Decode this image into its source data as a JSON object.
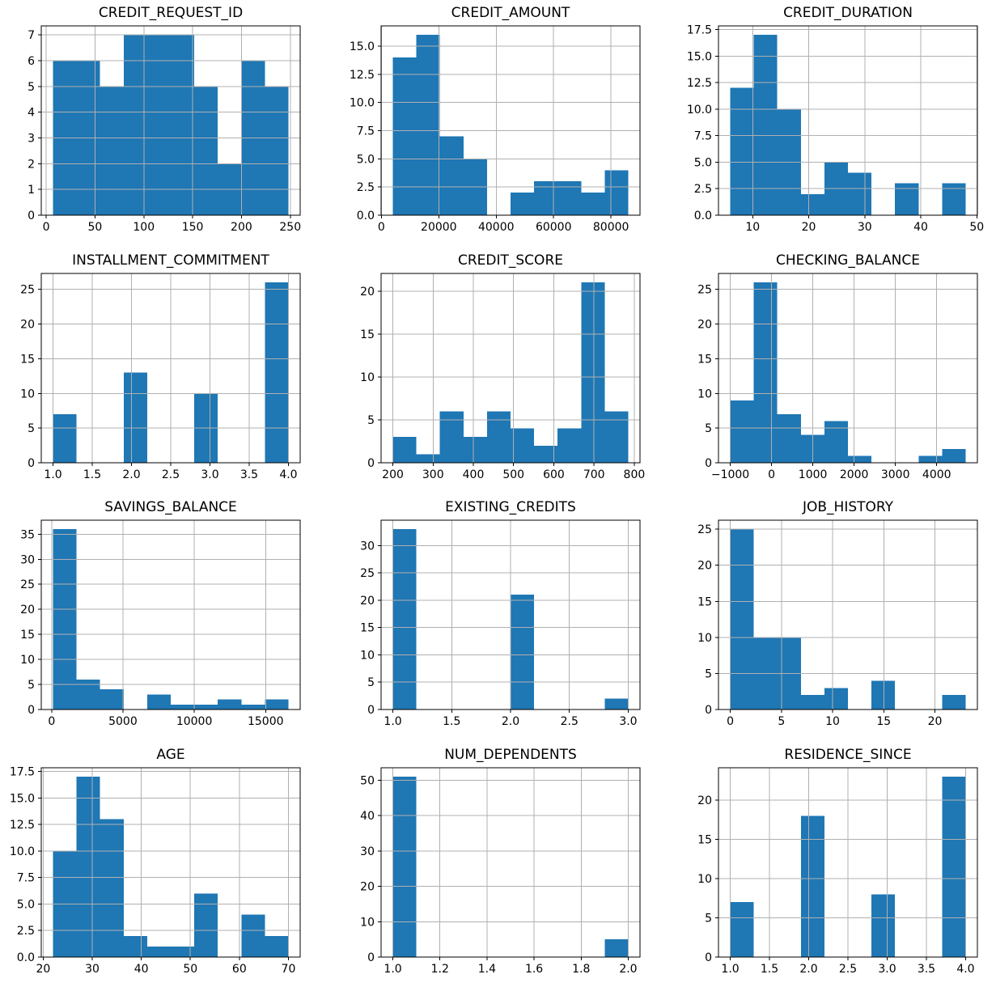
{
  "figure": {
    "background": "#ffffff",
    "bar_color": "#1f77b4",
    "grid_color": "#b0b0b0",
    "frame_color": "#000000",
    "tick_color": "#000000",
    "nrows": 4,
    "ncols": 3,
    "total_count_per_plot": 56
  },
  "chart_data": [
    {
      "type": "bar",
      "title": "CREDIT_REQUEST_ID",
      "bin_start": 7,
      "bin_width": 24.1,
      "values": [
        6,
        6,
        5,
        7,
        7,
        7,
        5,
        2,
        6,
        5
      ],
      "xlim": [
        -5.05,
        260.15
      ],
      "ylim": [
        0,
        7.35
      ],
      "xticks": [
        0,
        50,
        100,
        150,
        200,
        250
      ],
      "xtick_labels": [
        "0",
        "50",
        "100",
        "150",
        "200",
        "250"
      ],
      "yticks": [
        0,
        1,
        2,
        3,
        4,
        5,
        6,
        7
      ],
      "ytick_labels": [
        "0",
        "1",
        "2",
        "3",
        "4",
        "5",
        "6",
        "7"
      ],
      "grid": true,
      "xlabel": "",
      "ylabel": ""
    },
    {
      "type": "bar",
      "title": "CREDIT_AMOUNT",
      "bin_start": 4000,
      "bin_width": 8200,
      "values": [
        14,
        16,
        7,
        5,
        0,
        2,
        3,
        3,
        2,
        4
      ],
      "xlim": [
        -100,
        90100
      ],
      "ylim": [
        0,
        16.8
      ],
      "xticks": [
        0,
        20000,
        40000,
        60000,
        80000
      ],
      "xtick_labels": [
        "0",
        "20000",
        "40000",
        "60000",
        "80000"
      ],
      "yticks": [
        0,
        2.5,
        5,
        7.5,
        10,
        12.5,
        15
      ],
      "ytick_labels": [
        "0.0",
        "2.5",
        "5.0",
        "7.5",
        "10.0",
        "12.5",
        "15.0"
      ],
      "grid": true,
      "xlabel": "",
      "ylabel": ""
    },
    {
      "type": "bar",
      "title": "CREDIT_DURATION",
      "bin_start": 6,
      "bin_width": 4.2,
      "values": [
        12,
        17,
        10,
        2,
        5,
        4,
        0,
        3,
        0,
        3
      ],
      "xlim": [
        3.9,
        50.1
      ],
      "ylim": [
        0,
        17.85
      ],
      "xticks": [
        10,
        20,
        30,
        40,
        50
      ],
      "xtick_labels": [
        "10",
        "20",
        "30",
        "40",
        "50"
      ],
      "yticks": [
        0,
        2.5,
        5,
        7.5,
        10,
        12.5,
        15,
        17.5
      ],
      "ytick_labels": [
        "0.0",
        "2.5",
        "5.0",
        "7.5",
        "10.0",
        "12.5",
        "15.0",
        "17.5"
      ],
      "grid": true,
      "xlabel": "",
      "ylabel": ""
    },
    {
      "type": "bar",
      "title": "INSTALLMENT_COMMITMENT",
      "bin_start": 1,
      "bin_width": 0.3,
      "values": [
        7,
        0,
        0,
        13,
        0,
        0,
        10,
        0,
        0,
        26
      ],
      "xlim": [
        0.85,
        4.15
      ],
      "ylim": [
        0,
        27.3
      ],
      "xticks": [
        1,
        1.5,
        2,
        2.5,
        3,
        3.5,
        4
      ],
      "xtick_labels": [
        "1.0",
        "1.5",
        "2.0",
        "2.5",
        "3.0",
        "3.5",
        "4.0"
      ],
      "yticks": [
        0,
        5,
        10,
        15,
        20,
        25
      ],
      "ytick_labels": [
        "0",
        "5",
        "10",
        "15",
        "20",
        "25"
      ],
      "grid": true,
      "xlabel": "",
      "ylabel": ""
    },
    {
      "type": "bar",
      "title": "CREDIT_SCORE",
      "bin_start": 200,
      "bin_width": 58.5,
      "values": [
        3,
        1,
        6,
        3,
        6,
        4,
        2,
        4,
        21,
        6
      ],
      "xlim": [
        170.75,
        814.25
      ],
      "ylim": [
        0,
        22.05
      ],
      "xticks": [
        200,
        300,
        400,
        500,
        600,
        700,
        800
      ],
      "xtick_labels": [
        "200",
        "300",
        "400",
        "500",
        "600",
        "700",
        "800"
      ],
      "yticks": [
        0,
        5,
        10,
        15,
        20
      ],
      "ytick_labels": [
        "0",
        "5",
        "10",
        "15",
        "20"
      ],
      "grid": true,
      "xlabel": "",
      "ylabel": ""
    },
    {
      "type": "bar",
      "title": "CHECKING_BALANCE",
      "bin_start": -1000,
      "bin_width": 570,
      "values": [
        9,
        26,
        7,
        4,
        6,
        1,
        0,
        0,
        1,
        2
      ],
      "xlim": [
        -1285,
        4985
      ],
      "ylim": [
        0,
        27.3
      ],
      "xticks": [
        -1000,
        0,
        1000,
        2000,
        3000,
        4000
      ],
      "xtick_labels": [
        "−1000",
        "0",
        "1000",
        "2000",
        "3000",
        "4000"
      ],
      "yticks": [
        0,
        5,
        10,
        15,
        20,
        25
      ],
      "ytick_labels": [
        "0",
        "5",
        "10",
        "15",
        "20",
        "25"
      ],
      "grid": true,
      "xlabel": "",
      "ylabel": ""
    },
    {
      "type": "bar",
      "title": "SAVINGS_BALANCE",
      "bin_start": 100,
      "bin_width": 1650,
      "values": [
        36,
        6,
        4,
        0,
        3,
        1,
        1,
        2,
        1,
        2
      ],
      "xlim": [
        -725,
        17425
      ],
      "ylim": [
        0,
        37.8
      ],
      "xticks": [
        0,
        5000,
        10000,
        15000
      ],
      "xtick_labels": [
        "0",
        "5000",
        "10000",
        "15000"
      ],
      "yticks": [
        0,
        5,
        10,
        15,
        20,
        25,
        30,
        35
      ],
      "ytick_labels": [
        "0",
        "5",
        "10",
        "15",
        "20",
        "25",
        "30",
        "35"
      ],
      "grid": true,
      "xlabel": "",
      "ylabel": ""
    },
    {
      "type": "bar",
      "title": "EXISTING_CREDITS",
      "bin_start": 1,
      "bin_width": 0.2,
      "values": [
        33,
        0,
        0,
        0,
        0,
        21,
        0,
        0,
        0,
        2
      ],
      "xlim": [
        0.9,
        3.1
      ],
      "ylim": [
        0,
        34.65
      ],
      "xticks": [
        1,
        1.5,
        2,
        2.5,
        3
      ],
      "xtick_labels": [
        "1.0",
        "1.5",
        "2.0",
        "2.5",
        "3.0"
      ],
      "yticks": [
        0,
        5,
        10,
        15,
        20,
        25,
        30
      ],
      "ytick_labels": [
        "0",
        "5",
        "10",
        "15",
        "20",
        "25",
        "30"
      ],
      "grid": true,
      "xlabel": "",
      "ylabel": ""
    },
    {
      "type": "bar",
      "title": "JOB_HISTORY",
      "bin_start": 0,
      "bin_width": 2.3,
      "values": [
        25,
        10,
        10,
        2,
        3,
        0,
        4,
        0,
        0,
        2
      ],
      "xlim": [
        -1.15,
        24.15
      ],
      "ylim": [
        0,
        26.25
      ],
      "xticks": [
        0,
        5,
        10,
        15,
        20
      ],
      "xtick_labels": [
        "0",
        "5",
        "10",
        "15",
        "20"
      ],
      "yticks": [
        0,
        5,
        10,
        15,
        20,
        25
      ],
      "ytick_labels": [
        "0",
        "5",
        "10",
        "15",
        "20",
        "25"
      ],
      "grid": true,
      "xlabel": "",
      "ylabel": ""
    },
    {
      "type": "bar",
      "title": "AGE",
      "bin_start": 22,
      "bin_width": 4.8,
      "values": [
        10,
        17,
        13,
        2,
        1,
        1,
        6,
        0,
        4,
        2
      ],
      "xlim": [
        19.6,
        72.4
      ],
      "ylim": [
        0,
        17.85
      ],
      "xticks": [
        20,
        30,
        40,
        50,
        60,
        70
      ],
      "xtick_labels": [
        "20",
        "30",
        "40",
        "50",
        "60",
        "70"
      ],
      "yticks": [
        0,
        2.5,
        5,
        7.5,
        10,
        12.5,
        15,
        17.5
      ],
      "ytick_labels": [
        "0.0",
        "2.5",
        "5.0",
        "7.5",
        "10.0",
        "12.5",
        "15.0",
        "17.5"
      ],
      "grid": true,
      "xlabel": "",
      "ylabel": ""
    },
    {
      "type": "bar",
      "title": "NUM_DEPENDENTS",
      "bin_start": 1,
      "bin_width": 0.1,
      "values": [
        51,
        0,
        0,
        0,
        0,
        0,
        0,
        0,
        0,
        5
      ],
      "xlim": [
        0.95,
        2.05
      ],
      "ylim": [
        0,
        53.55
      ],
      "xticks": [
        1,
        1.2,
        1.4,
        1.6,
        1.8,
        2
      ],
      "xtick_labels": [
        "1.0",
        "1.2",
        "1.4",
        "1.6",
        "1.8",
        "2.0"
      ],
      "yticks": [
        0,
        10,
        20,
        30,
        40,
        50
      ],
      "ytick_labels": [
        "0",
        "10",
        "20",
        "30",
        "40",
        "50"
      ],
      "grid": true,
      "xlabel": "",
      "ylabel": ""
    },
    {
      "type": "bar",
      "title": "RESIDENCE_SINCE",
      "bin_start": 1,
      "bin_width": 0.3,
      "values": [
        7,
        0,
        0,
        18,
        0,
        0,
        8,
        0,
        0,
        23
      ],
      "xlim": [
        0.85,
        4.15
      ],
      "ylim": [
        0,
        24.15
      ],
      "xticks": [
        1,
        1.5,
        2,
        2.5,
        3,
        3.5,
        4
      ],
      "xtick_labels": [
        "1.0",
        "1.5",
        "2.0",
        "2.5",
        "3.0",
        "3.5",
        "4.0"
      ],
      "yticks": [
        0,
        5,
        10,
        15,
        20
      ],
      "ytick_labels": [
        "0",
        "5",
        "10",
        "15",
        "20"
      ],
      "grid": true,
      "xlabel": "",
      "ylabel": ""
    }
  ]
}
